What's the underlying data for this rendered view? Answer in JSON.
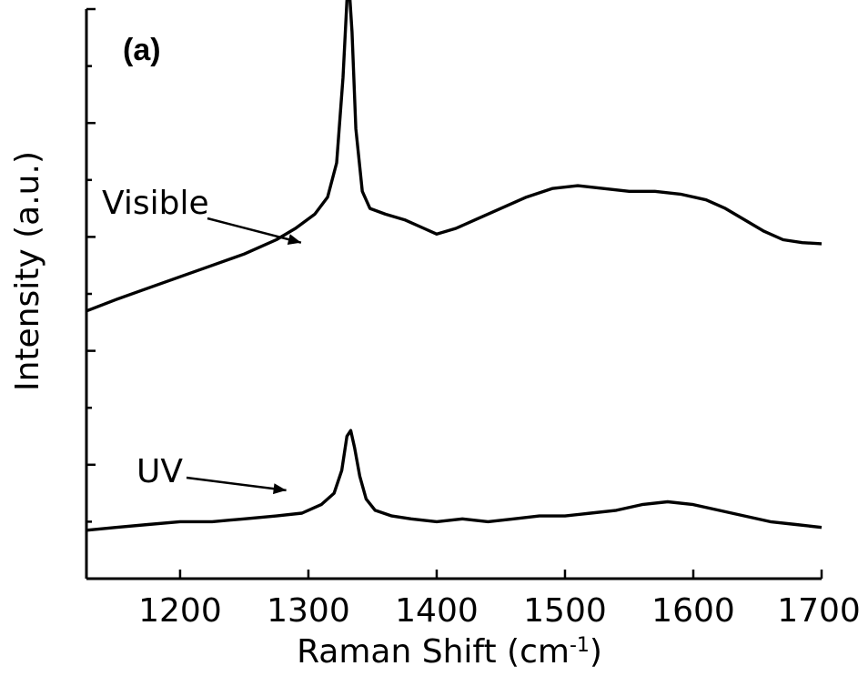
{
  "chart_data": {
    "type": "line",
    "panel_label": "(a)",
    "xlabel": "Raman Shift (cm",
    "xlabel_sup": "-1",
    "xlabel_end": ")",
    "ylabel": "Intensity (a.u.)",
    "xlim": [
      1127,
      1700
    ],
    "ylim": [
      0,
      10
    ],
    "xticks": [
      1200,
      1300,
      1400,
      1500,
      1600,
      1700
    ],
    "xtick_labels": [
      "1200",
      "1300",
      "1400",
      "1500",
      "1600",
      "1700"
    ],
    "yticks_major": [
      2,
      4,
      6,
      8,
      10
    ],
    "yticks_minor": [
      1,
      3,
      5,
      7,
      9
    ],
    "grid": false,
    "annotations": [
      {
        "text": "Visible",
        "series": "visible",
        "arrow_to": [
          1273,
          5.9
        ]
      },
      {
        "text": "UV",
        "series": "uv",
        "arrow_to": [
          1265,
          1.2
        ]
      }
    ],
    "series": [
      {
        "key": "visible",
        "x": [
          1127,
          1150,
          1175,
          1200,
          1225,
          1250,
          1275,
          1290,
          1305,
          1315,
          1322,
          1327,
          1330,
          1332,
          1334,
          1337,
          1342,
          1348,
          1360,
          1375,
          1390,
          1400,
          1415,
          1430,
          1450,
          1470,
          1490,
          1510,
          1530,
          1550,
          1570,
          1590,
          1610,
          1625,
          1640,
          1655,
          1670,
          1685,
          1700
        ],
        "y": [
          4.7,
          4.9,
          5.1,
          5.3,
          5.5,
          5.7,
          5.95,
          6.15,
          6.4,
          6.7,
          7.3,
          8.8,
          10.15,
          10.3,
          9.6,
          7.9,
          6.8,
          6.5,
          6.4,
          6.3,
          6.15,
          6.05,
          6.15,
          6.3,
          6.5,
          6.7,
          6.85,
          6.9,
          6.85,
          6.8,
          6.8,
          6.75,
          6.65,
          6.5,
          6.3,
          6.1,
          5.95,
          5.9,
          5.88
        ]
      },
      {
        "key": "uv",
        "x": [
          1127,
          1150,
          1175,
          1200,
          1225,
          1250,
          1275,
          1295,
          1310,
          1320,
          1326,
          1330,
          1333,
          1336,
          1340,
          1345,
          1352,
          1365,
          1380,
          1400,
          1420,
          1440,
          1460,
          1480,
          1500,
          1520,
          1540,
          1560,
          1580,
          1600,
          1620,
          1640,
          1660,
          1680,
          1700
        ],
        "y": [
          0.85,
          0.9,
          0.95,
          1.0,
          1.0,
          1.05,
          1.1,
          1.15,
          1.3,
          1.5,
          1.9,
          2.5,
          2.6,
          2.3,
          1.8,
          1.4,
          1.2,
          1.1,
          1.05,
          1.0,
          1.05,
          1.0,
          1.05,
          1.1,
          1.1,
          1.15,
          1.2,
          1.3,
          1.35,
          1.3,
          1.2,
          1.1,
          1.0,
          0.95,
          0.9
        ]
      }
    ]
  }
}
